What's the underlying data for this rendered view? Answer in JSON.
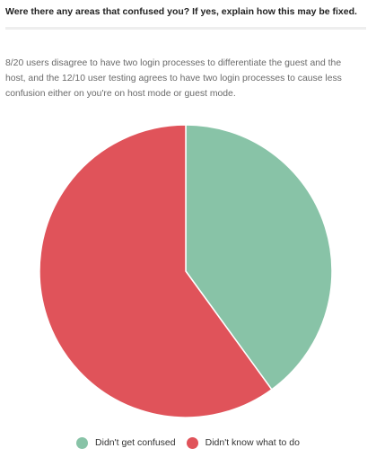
{
  "question": "Were there any areas that confused you? If yes, explain how this may be fixed.",
  "summary_lines": [
    "8/20 users disagree to have two login processes to differentiate the guest and the",
    "host, and the 12/10 user testing agrees to have two login processes to cause less",
    "confusion either on you're on host mode or guest mode."
  ],
  "chart_data": {
    "type": "pie",
    "title": "",
    "series": [
      {
        "name": "Didn't get confused",
        "value": 8,
        "color": "#88c3a7"
      },
      {
        "name": "Didn't know what to do",
        "value": 12,
        "color": "#e0535a"
      }
    ],
    "start_angle_deg": 0,
    "direction": "clockwise",
    "slice_border_color": "#ffffff",
    "legend_position": "bottom-center"
  }
}
